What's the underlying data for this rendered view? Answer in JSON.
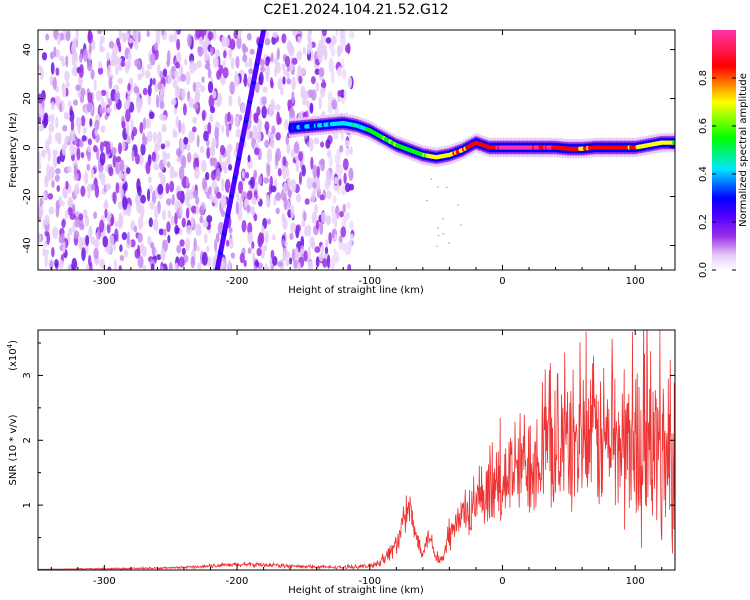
{
  "figure": {
    "title": "C2E1.2024.104.21.52.G12"
  },
  "chart_data": [
    {
      "type": "heatmap",
      "title": "C2E1.2024.104.21.52.G12",
      "xlabel": "Height of straight line (km)",
      "ylabel": "Frequency (Hz)",
      "xlim": [
        -350,
        130
      ],
      "ylim": [
        -50,
        48
      ],
      "xticks": [
        -300,
        -200,
        -100,
        0,
        100
      ],
      "yticks": [
        -40,
        -20,
        0,
        20,
        40
      ],
      "colorbar": {
        "label": "Normalized spectral amplitude",
        "range": [
          0.0,
          1.0
        ],
        "ticks": [
          0.0,
          0.2,
          0.4,
          0.6,
          0.8
        ],
        "colormap": [
          "#ffffff",
          "#e6ccf8",
          "#9b30e8",
          "#5500ff",
          "#0000ff",
          "#00e5ff",
          "#00ff00",
          "#ffff00",
          "#ff0000",
          "#ff33aa"
        ]
      },
      "noise_region_x": [
        -350,
        -113
      ],
      "streak_x": [
        -215,
        -180
      ],
      "ridge": {
        "x": [
          -160,
          -140,
          -120,
          -110,
          -100,
          -90,
          -80,
          -70,
          -60,
          -50,
          -40,
          -30,
          -20,
          -10,
          0,
          10,
          20,
          30,
          40,
          50,
          60,
          70,
          80,
          90,
          100,
          110,
          120,
          130
        ],
        "freq": [
          8,
          9,
          10,
          9,
          7,
          4,
          1,
          -1,
          -3,
          -4,
          -3,
          -1,
          2,
          0,
          0,
          0,
          0,
          0,
          0,
          -0.5,
          -0.5,
          0,
          0,
          0,
          0,
          1,
          2,
          2
        ],
        "amplitude": [
          0.25,
          0.3,
          0.35,
          0.4,
          0.45,
          0.5,
          0.55,
          0.5,
          0.55,
          0.6,
          0.65,
          0.7,
          0.75,
          0.8,
          0.9,
          0.92,
          0.9,
          0.85,
          0.8,
          0.75,
          0.7,
          0.75,
          0.8,
          0.75,
          0.7,
          0.65,
          0.6,
          0.55
        ]
      }
    },
    {
      "type": "line",
      "xlabel": "Height of straight line (km)",
      "ylabel": "SNR (10 * v/v)",
      "yscale_label": "(x10",
      "yscale_exp": "4",
      "xlim": [
        -350,
        130
      ],
      "ylim": [
        0,
        3.7
      ],
      "xticks": [
        -300,
        -200,
        -100,
        0,
        100
      ],
      "yticks": [
        1,
        2,
        3
      ],
      "color": "#ee3333",
      "series": [
        {
          "x": [
            -350,
            -300,
            -250,
            -200,
            -180,
            -150,
            -120,
            -100,
            -90,
            -80,
            -75,
            -70,
            -65,
            -60,
            -55,
            -50,
            -45,
            -40,
            -35,
            -30,
            -20,
            -10,
            0,
            10,
            20,
            30,
            40,
            50,
            60,
            70,
            80,
            90,
            100,
            110,
            120,
            130
          ],
          "y": [
            0.01,
            0.02,
            0.03,
            0.08,
            0.08,
            0.05,
            0.04,
            0.06,
            0.15,
            0.4,
            0.7,
            0.95,
            0.5,
            0.3,
            0.55,
            0.2,
            0.15,
            0.5,
            0.7,
            0.85,
            0.95,
            1.05,
            1.4,
            1.55,
            1.7,
            1.85,
            1.9,
            1.95,
            2.0,
            2.05,
            2.0,
            1.95,
            1.9,
            1.85,
            1.8,
            1.75
          ],
          "spread": [
            0.0,
            0.01,
            0.01,
            0.03,
            0.03,
            0.02,
            0.02,
            0.03,
            0.08,
            0.15,
            0.2,
            0.25,
            0.15,
            0.1,
            0.15,
            0.08,
            0.1,
            0.2,
            0.25,
            0.3,
            0.35,
            0.45,
            0.6,
            0.7,
            0.75,
            0.8,
            0.85,
            0.9,
            0.95,
            1.0,
            1.05,
            1.1,
            1.15,
            1.2,
            1.25,
            1.3
          ]
        }
      ]
    }
  ]
}
